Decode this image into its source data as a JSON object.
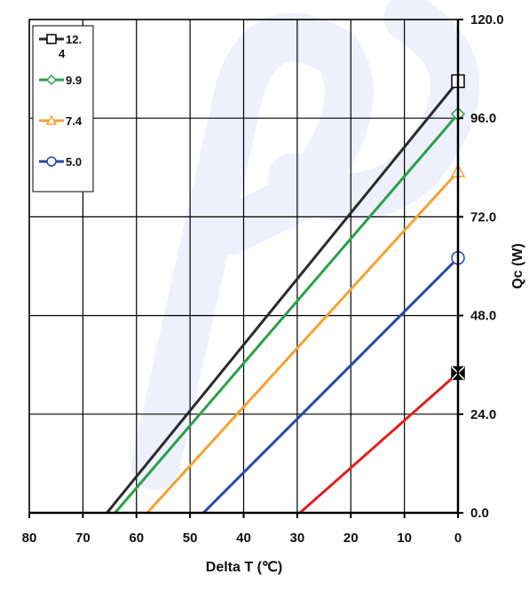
{
  "chart_data": {
    "type": "line",
    "xlabel": "Delta T (℃)",
    "ylabel": "Qc (W)",
    "xlim": [
      80,
      0
    ],
    "ylim": [
      0,
      120
    ],
    "x_ticks": [
      "80",
      "70",
      "60",
      "50",
      "40",
      "30",
      "20",
      "10",
      "0"
    ],
    "y_ticks": [
      "0.0",
      "24.0",
      "48.0",
      "72.0",
      "96.0",
      "120.0"
    ],
    "y_axis_position": "right",
    "x_axis_reversed": true,
    "grid": true,
    "legend_position": "top-left",
    "series": [
      {
        "name": "12.4",
        "legend_lines": [
          "12.",
          "4"
        ],
        "color": "#2b2b2b",
        "marker": "square",
        "x": [
          65.5,
          0
        ],
        "y": [
          0,
          105
        ]
      },
      {
        "name": "9.9",
        "legend_lines": [
          "9.9"
        ],
        "color": "#2aa04a",
        "marker": "diamond",
        "x": [
          64,
          0
        ],
        "y": [
          0,
          97
        ]
      },
      {
        "name": "7.4",
        "legend_lines": [
          "7.4"
        ],
        "color": "#f5a132",
        "marker": "triangle",
        "x": [
          58,
          0
        ],
        "y": [
          0,
          83
        ]
      },
      {
        "name": "5.0",
        "legend_lines": [
          "5.0"
        ],
        "color": "#2a46a8",
        "marker": "circle",
        "x": [
          47.5,
          0
        ],
        "y": [
          0,
          62
        ]
      },
      {
        "name": "",
        "legend_lines": [],
        "color": "#e0201c",
        "marker": "x-square",
        "x": [
          29.5,
          0
        ],
        "y": [
          0,
          34
        ]
      }
    ]
  }
}
